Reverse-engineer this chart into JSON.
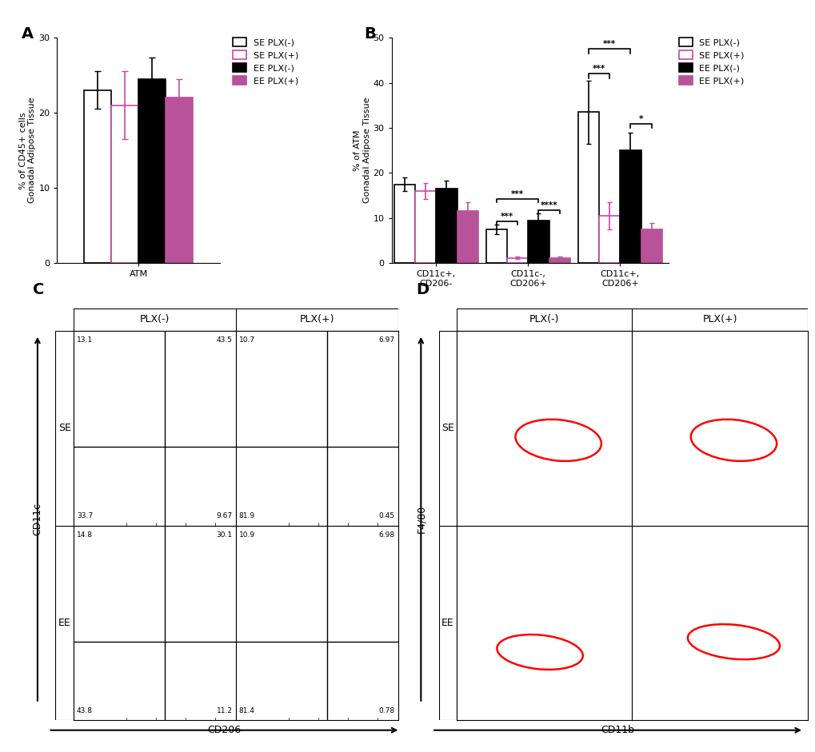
{
  "panel_A": {
    "values": [
      23.0,
      21.0,
      24.5,
      22.0
    ],
    "errors": [
      2.5,
      4.5,
      2.8,
      2.5
    ],
    "colors": [
      "#ffffff",
      "#ffffff",
      "#000000",
      "#b8529a"
    ],
    "edge_colors": [
      "#000000",
      "#cc44aa",
      "#000000",
      "#b8529a"
    ],
    "ylabel": "% of CD45+ cells\nGonadal Adipose Tissue",
    "ylim": [
      0,
      30
    ],
    "yticks": [
      0,
      10,
      20,
      30
    ],
    "xlabel": "ATM"
  },
  "panel_B": {
    "categories": [
      "CD11c+,\nCD206-",
      "CD11c-,\nCD206+",
      "CD11c+,\nCD206+"
    ],
    "values": [
      [
        17.5,
        16.0,
        16.5,
        11.5
      ],
      [
        7.5,
        1.2,
        9.5,
        1.2
      ],
      [
        33.5,
        10.5,
        25.0,
        7.5
      ]
    ],
    "errors": [
      [
        1.5,
        1.8,
        1.8,
        2.0
      ],
      [
        1.0,
        0.3,
        1.5,
        0.3
      ],
      [
        7.0,
        3.0,
        4.0,
        1.5
      ]
    ],
    "colors": [
      "#ffffff",
      "#ffffff",
      "#000000",
      "#b8529a"
    ],
    "edge_colors": [
      "#000000",
      "#cc44aa",
      "#000000",
      "#b8529a"
    ],
    "ylabel": "% of ATM\nGonadal Adipose Tissue",
    "ylim": [
      0,
      50
    ],
    "yticks": [
      0,
      10,
      20,
      30,
      40,
      50
    ]
  },
  "legend_labels": [
    "SE PLX(-)",
    "SE PLX(+)",
    "EE PLX(-)",
    "EE PLX(+)"
  ],
  "legend_colors": [
    "#ffffff",
    "#ffffff",
    "#000000",
    "#b8529a"
  ],
  "legend_edge_colors": [
    "#000000",
    "#cc44aa",
    "#000000",
    "#b8529a"
  ],
  "panel_C": {
    "quadrant_values": [
      [
        [
          "13.1",
          "43.5"
        ],
        [
          "33.7",
          "9.67"
        ]
      ],
      [
        [
          "10.7",
          "6.97"
        ],
        [
          "81.9",
          "0.45"
        ]
      ],
      [
        [
          "14.8",
          "30.1"
        ],
        [
          "43.8",
          "11.2"
        ]
      ],
      [
        [
          "10.9",
          "6.98"
        ],
        [
          "81.4",
          "0.78"
        ]
      ]
    ],
    "col_labels": [
      "PLX(-)",
      "PLX(+)"
    ],
    "row_labels": [
      "SE",
      "EE"
    ],
    "xlabel": "CD206",
    "ylabel": "CD11c"
  },
  "panel_D": {
    "col_labels": [
      "PLX(-)",
      "PLX(+)"
    ],
    "row_labels": [
      "SE",
      "EE"
    ],
    "xlabel": "CD11b",
    "ylabel": "F4/80"
  },
  "background_color": "#ffffff"
}
